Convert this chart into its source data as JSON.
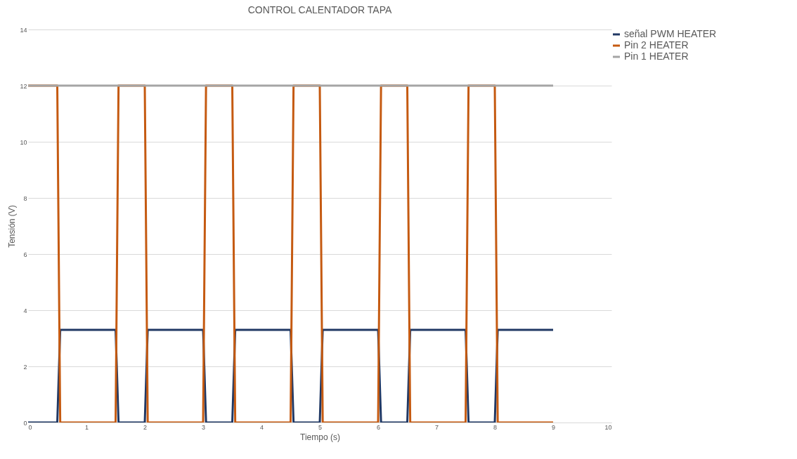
{
  "chart_data": {
    "type": "line",
    "title": "CONTROL CALENTADOR TAPA",
    "xlabel": "Tiempo (s)",
    "ylabel": "Tensión (V)",
    "xlim": [
      0,
      10
    ],
    "xticks": [
      0,
      1,
      2,
      3,
      4,
      5,
      6,
      7,
      8,
      9,
      10
    ],
    "ylim": [
      0,
      14
    ],
    "yticks": [
      0,
      2,
      4,
      6,
      8,
      10,
      12,
      14
    ],
    "grid": "y",
    "legend": "right",
    "marker": "none",
    "line_style": "solid",
    "series": [
      {
        "name": "señal PWM HEATER",
        "color": "#203864",
        "x": [
          0,
          0.5,
          0.55,
          1.5,
          1.55,
          2.0,
          2.05,
          3.0,
          3.05,
          3.5,
          3.55,
          4.5,
          4.55,
          5.0,
          5.05,
          6.0,
          6.05,
          6.5,
          6.55,
          7.5,
          7.55,
          8.0,
          8.05,
          9
        ],
        "values": [
          0,
          0,
          3.3,
          3.3,
          0,
          0,
          3.3,
          3.3,
          0,
          0,
          3.3,
          3.3,
          0,
          0,
          3.3,
          3.3,
          0,
          0,
          3.3,
          3.3,
          0,
          0,
          3.3,
          3.3
        ]
      },
      {
        "name": "Pin 2 HEATER",
        "color": "#c55a11",
        "x": [
          0,
          0.5,
          0.55,
          1.5,
          1.55,
          2.0,
          2.05,
          3.0,
          3.05,
          3.5,
          3.55,
          4.5,
          4.55,
          5.0,
          5.05,
          6.0,
          6.05,
          6.5,
          6.55,
          7.5,
          7.55,
          8.0,
          8.05,
          9
        ],
        "values": [
          12,
          12,
          0,
          0,
          12,
          12,
          0,
          0,
          12,
          12,
          0,
          0,
          12,
          12,
          0,
          0,
          12,
          12,
          0,
          0,
          12,
          12,
          0,
          0
        ]
      },
      {
        "name": "Pin 1 HEATER",
        "color": "#a5a5a5",
        "x": [
          0,
          9
        ],
        "values": [
          12,
          12
        ]
      }
    ]
  }
}
